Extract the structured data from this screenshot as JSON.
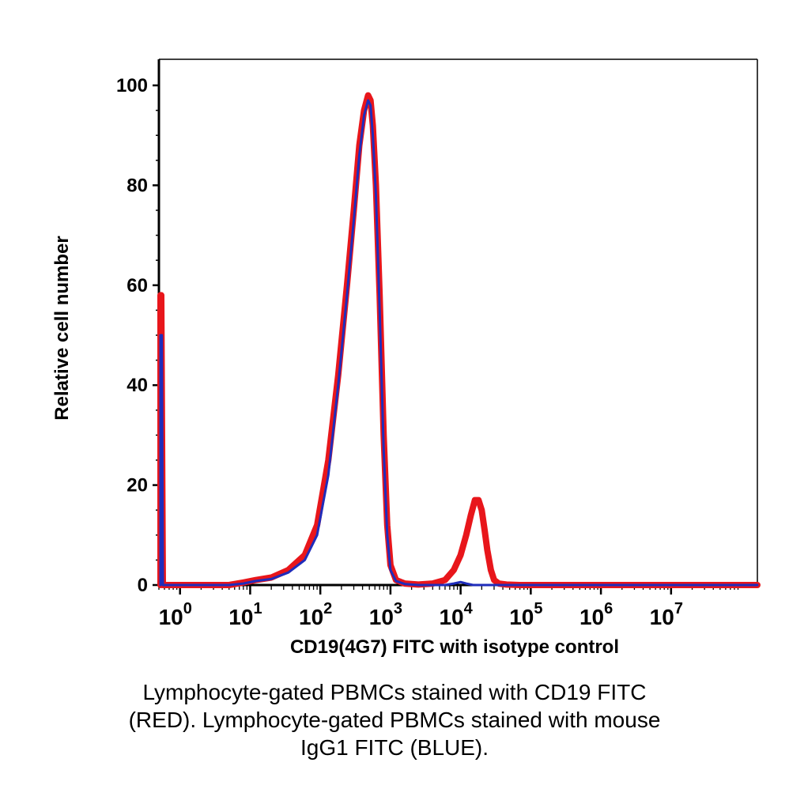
{
  "chart_data": {
    "type": "line",
    "xlabel": "CD19(4G7) FITC with isotype control",
    "ylabel": "Relative cell number",
    "xscale": "log",
    "xlim": [
      0.5,
      170000000
    ],
    "ylim": [
      0,
      100
    ],
    "yticks": [
      "0",
      "20",
      "40",
      "60",
      "80",
      "100"
    ],
    "xticks": [
      {
        "base": "10",
        "exp": "0"
      },
      {
        "base": "10",
        "exp": "1"
      },
      {
        "base": "10",
        "exp": "2"
      },
      {
        "base": "10",
        "exp": "3"
      },
      {
        "base": "10",
        "exp": "4"
      },
      {
        "base": "10",
        "exp": "5"
      },
      {
        "base": "10",
        "exp": "6"
      },
      {
        "base": "10",
        "exp": "7"
      }
    ],
    "grid": false,
    "legend": "none",
    "series": [
      {
        "color": "#e8161b",
        "x": [
          0.5,
          0.5,
          0.54,
          0.57,
          5,
          8,
          12,
          20,
          35,
          60,
          90,
          130,
          180,
          240,
          300,
          360,
          420,
          480,
          520,
          560,
          620,
          700,
          800,
          900,
          1000,
          1200,
          1600,
          2500,
          4000,
          6000,
          8000,
          10000,
          12000,
          14000,
          16000,
          18000,
          20000,
          22000,
          24000,
          27000,
          30000,
          35000,
          45000,
          70000,
          170000000
        ],
        "y": [
          0,
          58,
          58,
          0,
          0,
          0.5,
          1,
          1.5,
          3,
          6,
          12,
          25,
          42,
          60,
          75,
          88,
          95,
          98,
          97,
          92,
          80,
          58,
          30,
          12,
          4,
          1,
          0.3,
          0.1,
          0.3,
          1,
          3,
          6,
          10,
          14,
          17,
          17,
          15,
          11,
          7,
          3,
          1,
          0.3,
          0.1,
          0,
          0
        ]
      },
      {
        "color": "#1f2dbb",
        "x": [
          0.5,
          0.5,
          0.55,
          0.57,
          5,
          8,
          12,
          20,
          35,
          60,
          90,
          130,
          180,
          240,
          300,
          360,
          420,
          480,
          520,
          560,
          620,
          700,
          800,
          900,
          1000,
          1200,
          1600,
          2500,
          4000,
          6000,
          8000,
          10000,
          12000,
          15000,
          170000000
        ],
        "y": [
          0,
          50,
          50,
          0,
          0,
          0.3,
          0.8,
          1.2,
          2.5,
          5,
          10,
          22,
          40,
          58,
          73,
          86,
          94,
          97,
          96,
          90,
          78,
          55,
          27,
          10,
          3,
          0.8,
          0.2,
          0,
          0,
          0,
          0.3,
          0.6,
          0.3,
          0,
          0
        ]
      }
    ]
  },
  "caption": {
    "line1": "Lymphocyte-gated PBMCs stained with CD19 FITC",
    "line2": "(RED). Lymphocyte-gated PBMCs stained with mouse",
    "line3": "IgG1 FITC (BLUE)."
  }
}
